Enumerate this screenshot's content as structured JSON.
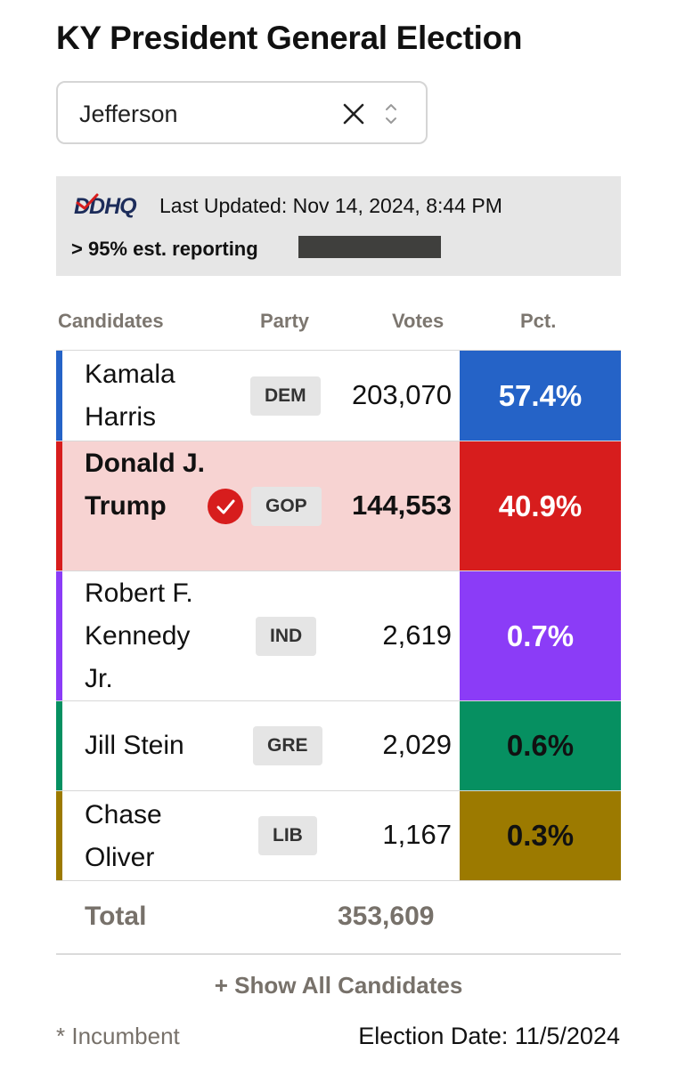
{
  "title": "KY President General Election",
  "county_select": {
    "value": "Jefferson",
    "clear_icon": "close-icon",
    "toggle_icon": "chevron-updown-icon"
  },
  "info": {
    "logo_text": "DDHQ",
    "last_updated": "Last Updated: Nov 14, 2024, 8:44 PM",
    "reporting": "> 95% est. reporting",
    "reporting_fraction": 0.95
  },
  "columns": {
    "candidates": "Candidates",
    "party": "Party",
    "votes": "Votes",
    "pct": "Pct."
  },
  "candidates": [
    {
      "name": "Kamala Harris",
      "party": "DEM",
      "votes": "203,070",
      "pct": "57.4%",
      "color": "#2563c7",
      "winner": false
    },
    {
      "name": "Donald J. Trump",
      "party": "GOP",
      "votes": "144,553",
      "pct": "40.9%",
      "color": "#d71d1d",
      "winner": true
    },
    {
      "name": "Robert F. Kennedy Jr.",
      "party": "IND",
      "votes": "2,619",
      "pct": "0.7%",
      "color": "#8b3cf7",
      "winner": false
    },
    {
      "name": "Jill Stein",
      "party": "GRE",
      "votes": "2,029",
      "pct": "0.6%",
      "color": "#069061",
      "winner": false
    },
    {
      "name": "Chase Oliver",
      "party": "LIB",
      "votes": "1,167",
      "pct": "0.3%",
      "color": "#9c7a00",
      "winner": false
    }
  ],
  "total": {
    "label": "Total",
    "votes": "353,609"
  },
  "show_all": "+ Show All Candidates",
  "incumbent_note": "* Incumbent",
  "election_date": "Election Date: 11/5/2024",
  "colors": {
    "winner_row_bg": "#f7d3d2",
    "muted_text": "#77716a",
    "info_bg": "#e6e6e6"
  }
}
